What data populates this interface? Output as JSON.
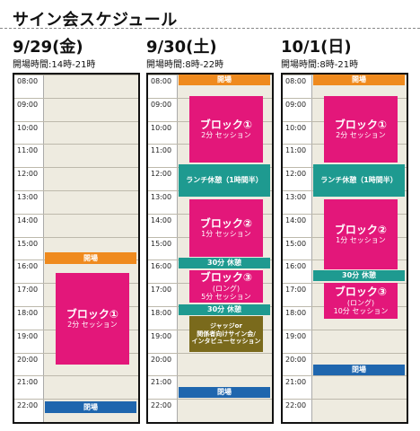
{
  "page": {
    "title": "サイン会スケジュール"
  },
  "times": [
    "08:00",
    "09:00",
    "10:00",
    "11:00",
    "12:00",
    "13:00",
    "14:00",
    "15:00",
    "16:00",
    "17:00",
    "18:00",
    "19:00",
    "20:00",
    "21:00",
    "22:00"
  ],
  "days": [
    {
      "date": "9/29(金)",
      "hours": "開場時間:14時-21時",
      "open_label": "開場",
      "block1": {
        "title": "ブロック①",
        "sub": "2分 セッション"
      },
      "close_label": "閉場"
    },
    {
      "date": "9/30(土)",
      "hours": "開場時間:8時-22時",
      "open_label": "開場",
      "block1": {
        "title": "ブロック①",
        "sub": "2分 セッション"
      },
      "lunch": "ランチ休憩（1時間半）",
      "block2": {
        "title": "ブロック②",
        "sub": "1分 セッション"
      },
      "break1": "30分 休憩",
      "block3": {
        "title": "ブロック③",
        "note": "(ロング)",
        "sub": "5分 セッション"
      },
      "break2": "30分 休憩",
      "judge": {
        "line1": "ジャッジor",
        "line2": "関係者向けサイン会/",
        "line3": "インタビューセッション"
      },
      "close_label": "閉場"
    },
    {
      "date": "10/1(日)",
      "hours": "開場時間:8時-21時",
      "open_label": "開場",
      "block1": {
        "title": "ブロック①",
        "sub": "2分 セッション"
      },
      "lunch": "ランチ休憩（1時間半）",
      "block2": {
        "title": "ブロック②",
        "sub": "1分 セッション"
      },
      "break1": "30分 休憩",
      "block3": {
        "title": "ブロック③",
        "note": "(ロング)",
        "sub": "10分 セッション"
      },
      "close_label": "閉場"
    }
  ],
  "colors": {
    "open": "#ef8a1e",
    "close": "#1f66ae",
    "session": "#e3177a",
    "break": "#1e9a90",
    "judge": "#7a6a1c",
    "grid": "#eeebe0"
  }
}
